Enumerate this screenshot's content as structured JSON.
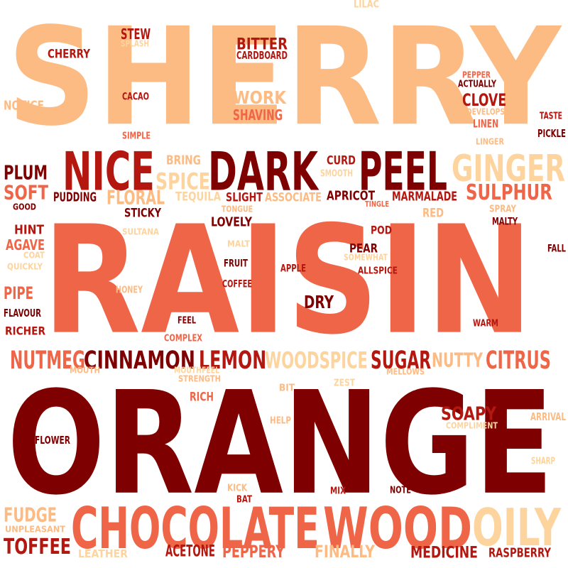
{
  "palette": {
    "dark_red": "#7f0000",
    "red": "#b3170f",
    "coral": "#ef6548",
    "peach": "#fdbb84",
    "light_peach": "#fdd49e"
  },
  "words": [
    {
      "text": "SHERRY",
      "color": "peach"
    },
    {
      "text": "RAISIN",
      "color": "coral"
    },
    {
      "text": "ORANGE",
      "color": "dark_red"
    },
    {
      "text": "NICE",
      "color": "red"
    },
    {
      "text": "DARK",
      "color": "dark_red"
    },
    {
      "text": "PEEL",
      "color": "dark_red"
    },
    {
      "text": "GINGER",
      "color": "light_peach"
    },
    {
      "text": "CHOCOLATE",
      "color": "coral"
    },
    {
      "text": "WOOD",
      "color": "coral"
    },
    {
      "text": "OILY",
      "color": "light_peach"
    },
    {
      "text": "CINNAMON",
      "color": "dark_red"
    },
    {
      "text": "LEMON",
      "color": "red"
    },
    {
      "text": "NUTMEG",
      "color": "coral"
    },
    {
      "text": "WOODSPICE",
      "color": "light_peach"
    },
    {
      "text": "SUGAR",
      "color": "red"
    },
    {
      "text": "NUTTY",
      "color": "peach"
    },
    {
      "text": "CITRUS",
      "color": "coral"
    },
    {
      "text": "SULPHUR",
      "color": "coral"
    },
    {
      "text": "PLUM",
      "color": "dark_red"
    },
    {
      "text": "SPICE",
      "color": "light_peach"
    },
    {
      "text": "FLORAL",
      "color": "peach"
    },
    {
      "text": "SOFT",
      "color": "coral"
    },
    {
      "text": "TOFFEE",
      "color": "red"
    },
    {
      "text": "FUDGE",
      "color": "peach"
    },
    {
      "text": "ACETONE",
      "color": "red"
    },
    {
      "text": "PEPPERY",
      "color": "coral"
    },
    {
      "text": "FINALLY",
      "color": "peach"
    },
    {
      "text": "MEDICINE",
      "color": "red"
    },
    {
      "text": "RASPBERRY",
      "color": "red"
    },
    {
      "text": "SOAPY",
      "color": "red"
    },
    {
      "text": "STEW",
      "color": "red"
    },
    {
      "text": "CHERRY",
      "color": "red"
    },
    {
      "text": "BITTER",
      "color": "red"
    },
    {
      "text": "CARDBOARD",
      "color": "red"
    },
    {
      "text": "WORK",
      "color": "peach"
    },
    {
      "text": "SHAVING",
      "color": "coral"
    },
    {
      "text": "CLOVE",
      "color": "red"
    },
    {
      "text": "NOTICE",
      "color": "peach"
    },
    {
      "text": "CACAO",
      "color": "red"
    },
    {
      "text": "SIMPLE",
      "color": "coral"
    },
    {
      "text": "SPLASH",
      "color": "light_peach"
    },
    {
      "text": "LILAC",
      "color": "light_peach"
    },
    {
      "text": "PEPPER",
      "color": "coral"
    },
    {
      "text": "ACTUALLY",
      "color": "dark_red"
    },
    {
      "text": "DEVELOPS",
      "color": "peach"
    },
    {
      "text": "LINEN",
      "color": "coral"
    },
    {
      "text": "LINGER",
      "color": "peach"
    },
    {
      "text": "TASTE",
      "color": "red"
    },
    {
      "text": "PICKLE",
      "color": "dark_red"
    },
    {
      "text": "BRING",
      "color": "peach"
    },
    {
      "text": "CURD",
      "color": "red"
    },
    {
      "text": "SMOOTH",
      "color": "light_peach"
    },
    {
      "text": "PUDDING",
      "color": "dark_red"
    },
    {
      "text": "TEQUILA",
      "color": "light_peach"
    },
    {
      "text": "SLIGHT",
      "color": "red"
    },
    {
      "text": "ASSOCIATE",
      "color": "peach"
    },
    {
      "text": "APRICOT",
      "color": "dark_red"
    },
    {
      "text": "MARMALADE",
      "color": "red"
    },
    {
      "text": "GOOD",
      "color": "dark_red"
    },
    {
      "text": "TONGUE",
      "color": "peach"
    },
    {
      "text": "TINGLE",
      "color": "coral"
    },
    {
      "text": "STICKY",
      "color": "dark_red"
    },
    {
      "text": "RED",
      "color": "peach"
    },
    {
      "text": "SPRAY",
      "color": "peach"
    },
    {
      "text": "MALTY",
      "color": "dark_red"
    },
    {
      "text": "HINT",
      "color": "red"
    },
    {
      "text": "LOVELY",
      "color": "dark_red"
    },
    {
      "text": "POD",
      "color": "red"
    },
    {
      "text": "AGAVE",
      "color": "coral"
    },
    {
      "text": "SULTANA",
      "color": "light_peach"
    },
    {
      "text": "COAT",
      "color": "light_peach"
    },
    {
      "text": "MALT",
      "color": "light_peach"
    },
    {
      "text": "PEAR",
      "color": "dark_red"
    },
    {
      "text": "SOMEWHAT",
      "color": "light_peach"
    },
    {
      "text": "FALL",
      "color": "dark_red"
    },
    {
      "text": "QUICKLY",
      "color": "light_peach"
    },
    {
      "text": "FRUIT",
      "color": "dark_red"
    },
    {
      "text": "APPLE",
      "color": "red"
    },
    {
      "text": "ALLSPICE",
      "color": "red"
    },
    {
      "text": "COFFEE",
      "color": "red"
    },
    {
      "text": "HONEY",
      "color": "peach"
    },
    {
      "text": "PIPE",
      "color": "coral"
    },
    {
      "text": "DRY",
      "color": "dark_red"
    },
    {
      "text": "FLAVOUR",
      "color": "dark_red"
    },
    {
      "text": "FEEL",
      "color": "dark_red"
    },
    {
      "text": "RICHER",
      "color": "red"
    },
    {
      "text": "WARM",
      "color": "red"
    },
    {
      "text": "COMPLEX",
      "color": "coral"
    },
    {
      "text": "MOUTH",
      "color": "peach"
    },
    {
      "text": "MOUTHFEEL",
      "color": "light_peach"
    },
    {
      "text": "STRENGTH",
      "color": "peach"
    },
    {
      "text": "MELLOWS",
      "color": "peach"
    },
    {
      "text": "RICH",
      "color": "coral"
    },
    {
      "text": "BIT",
      "color": "peach"
    },
    {
      "text": "ZEST",
      "color": "light_peach"
    },
    {
      "text": "HELP",
      "color": "peach"
    },
    {
      "text": "COMPLIMENT",
      "color": "light_peach"
    },
    {
      "text": "ARRIVAL",
      "color": "peach"
    },
    {
      "text": "FLOWER",
      "color": "dark_red"
    },
    {
      "text": "SHARP",
      "color": "light_peach"
    },
    {
      "text": "KICK",
      "color": "peach"
    },
    {
      "text": "BAT",
      "color": "red"
    },
    {
      "text": "MIX",
      "color": "red"
    },
    {
      "text": "NOTE",
      "color": "dark_red"
    },
    {
      "text": "UNPLEASANT",
      "color": "peach"
    },
    {
      "text": "LEATHER",
      "color": "light_peach"
    }
  ]
}
